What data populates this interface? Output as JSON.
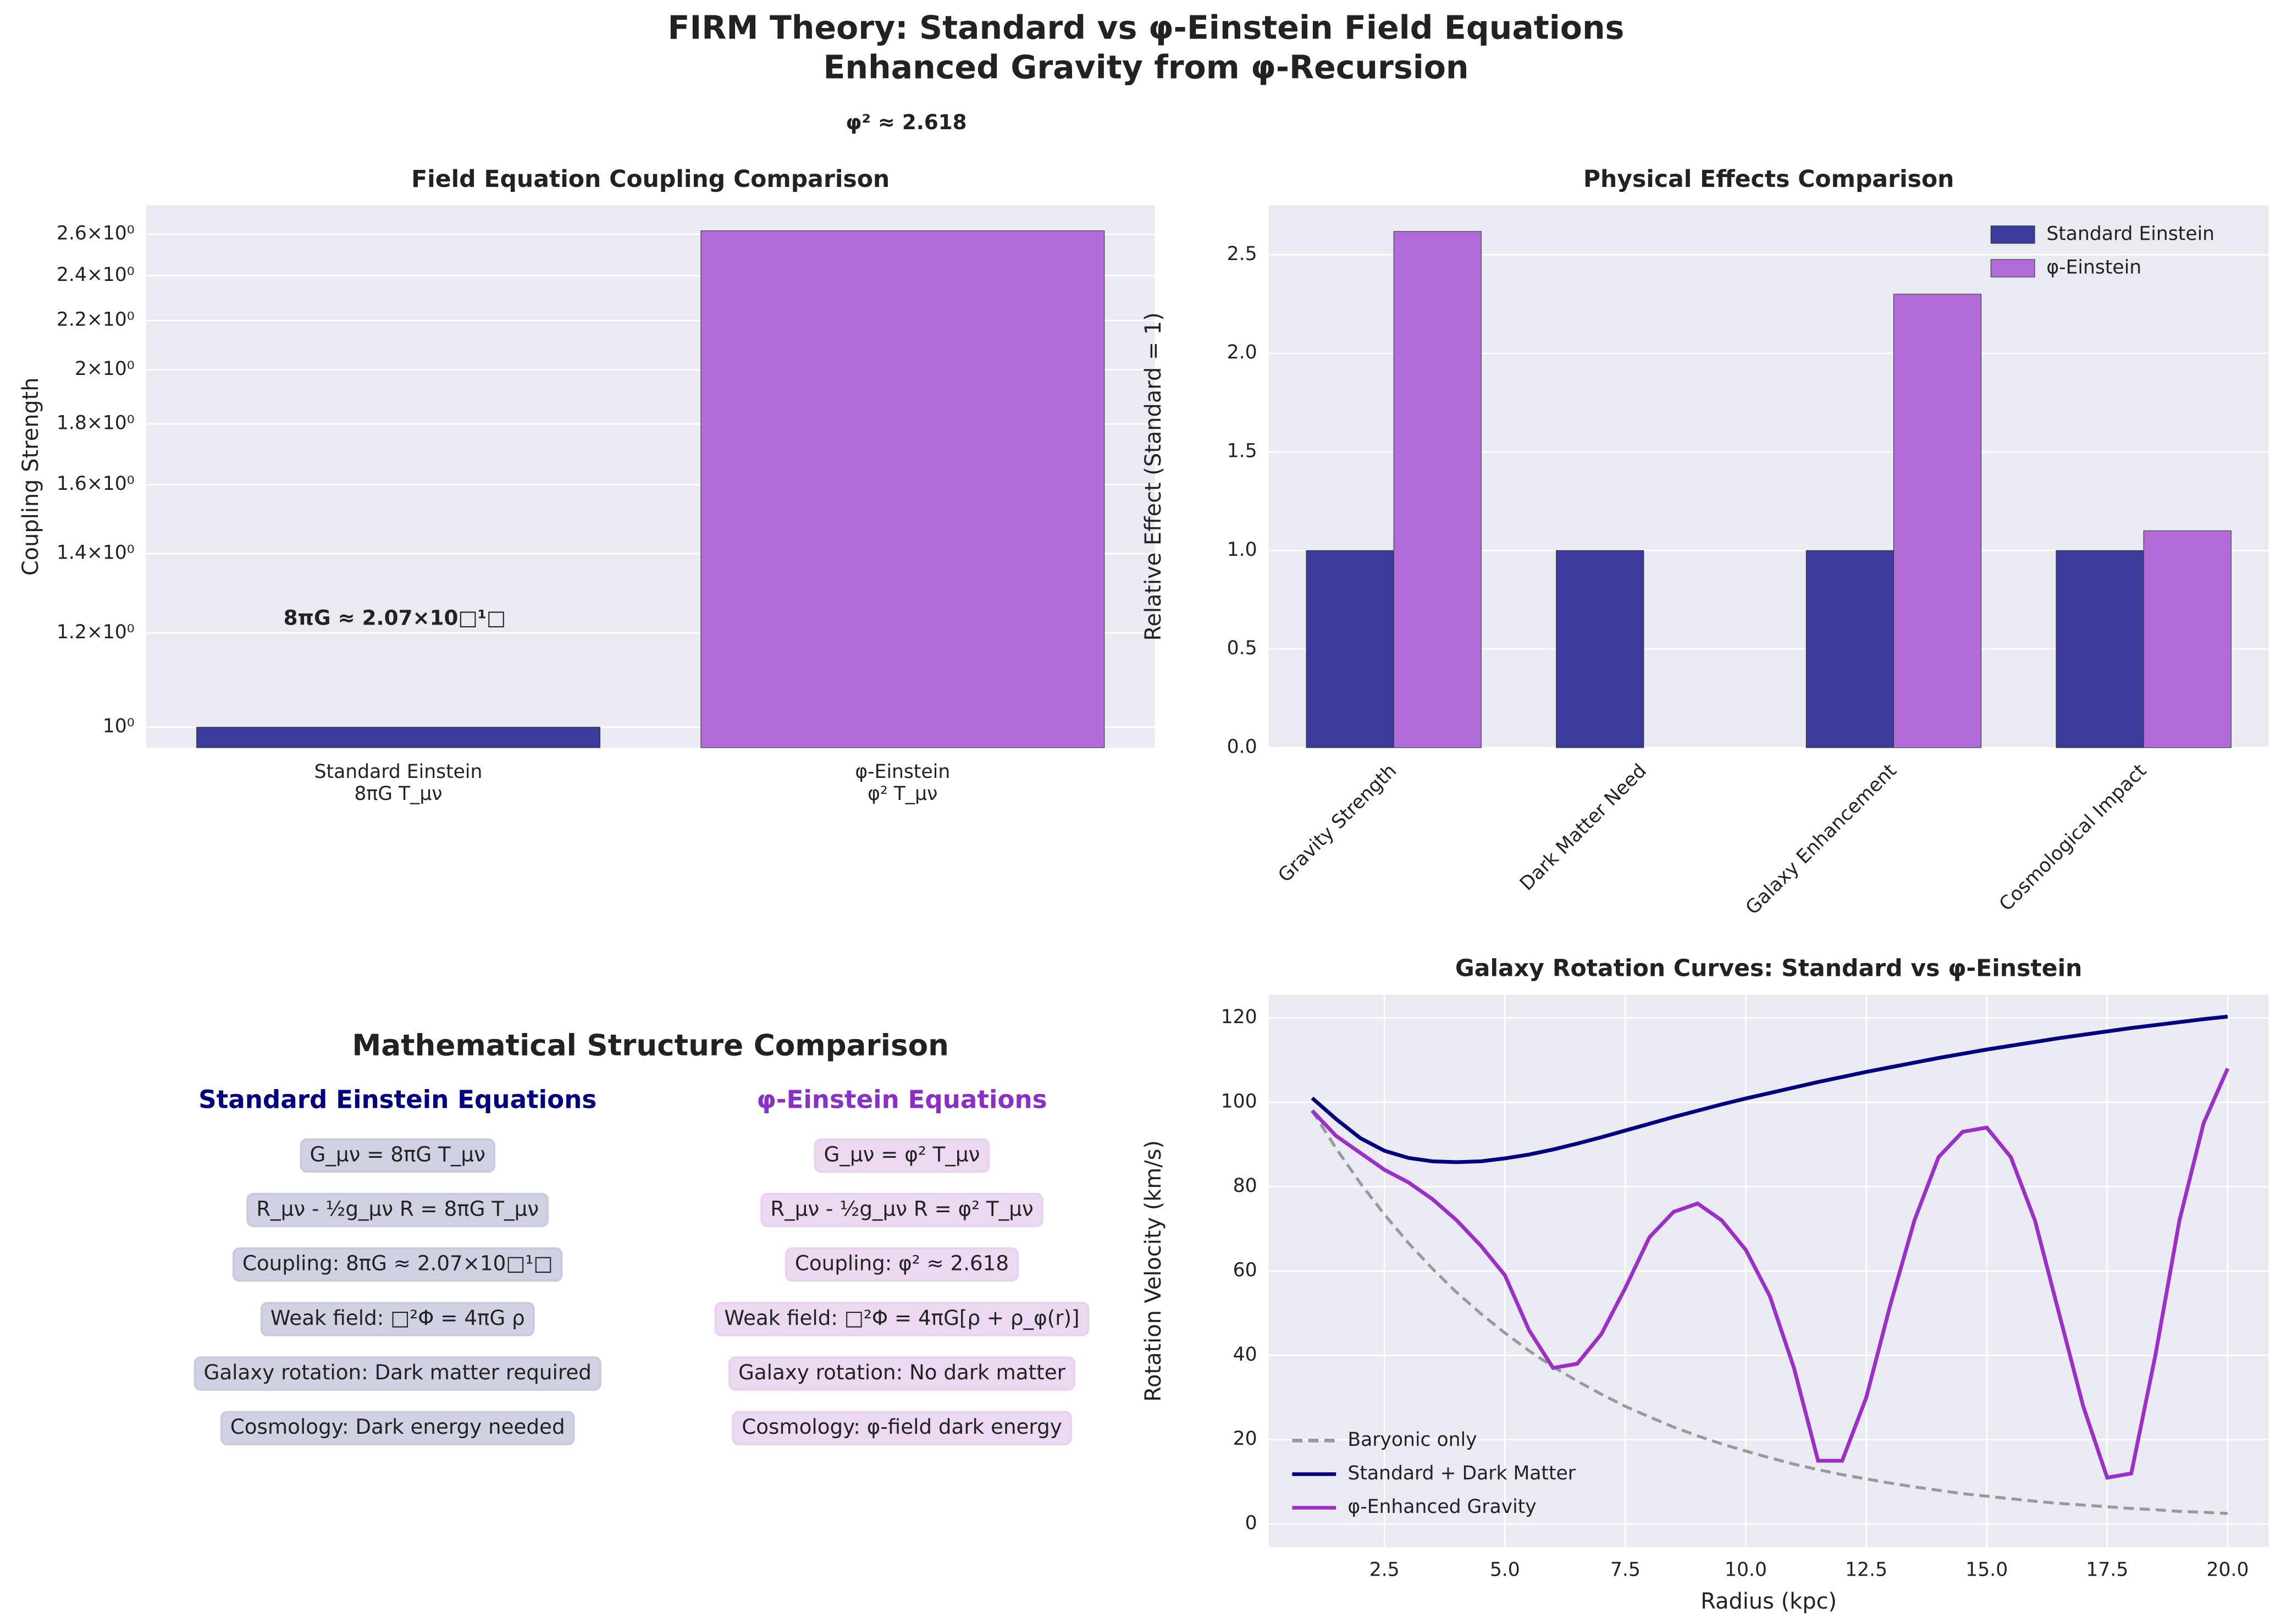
{
  "title": "FIRM Theory: Standard vs φ-Einstein Field Equations",
  "subtitle": "Enhanced Gravity from φ-Recursion",
  "chart_data": [
    {
      "type": "bar",
      "title": "Field Equation Coupling Comparison",
      "y_label": "Coupling Strength",
      "log_scale": true,
      "grid": true,
      "categories": [
        "Standard Einstein\n8πG T_μν",
        "φ-Einstein\nφ² T_μν"
      ],
      "values": [
        1,
        2.618
      ],
      "colors": [
        "#3b3b9b",
        "#b06bd6"
      ],
      "ylim": [
        0.961,
        2.75
      ],
      "yticks": [
        {
          "value": 1,
          "label": "10⁰"
        },
        {
          "value": 1.2,
          "label": "1.2×10⁰"
        },
        {
          "value": 1.4,
          "label": "1.4×10⁰"
        },
        {
          "value": 1.6,
          "label": "1.6×10⁰"
        },
        {
          "value": 1.8,
          "label": "1.8×10⁰"
        },
        {
          "value": 2,
          "label": "2×10⁰"
        },
        {
          "value": 2.2,
          "label": "2.2×10⁰"
        },
        {
          "value": 2.4,
          "label": "2.4×10⁰"
        },
        {
          "value": 2.6,
          "label": "2.6×10⁰"
        }
      ],
      "annotations": [
        "8πG ≈ 2.07×10□¹□",
        "φ² ≈ 2.618"
      ]
    },
    {
      "type": "bar",
      "title": "Physical Effects Comparison",
      "y_label": "Relative Effect (Standard = 1)",
      "grid": true,
      "legend": "upper right",
      "categories": [
        "Gravity Strength",
        "Dark Matter Need",
        "Galaxy Enhancement",
        "Cosmological Impact"
      ],
      "series": [
        {
          "name": "Standard Einstein",
          "color": "#3b3b9b",
          "values": [
            1,
            1,
            1,
            1
          ]
        },
        {
          "name": "φ-Einstein",
          "color": "#b06bd6",
          "values": [
            2.618,
            0,
            2.3,
            1.1
          ]
        }
      ],
      "ylim": [
        0,
        2.75
      ],
      "yticks": [
        {
          "value": 0,
          "label": "0.0"
        },
        0.5,
        {
          "value": 1,
          "label": "1.0"
        },
        1.5,
        {
          "value": 2,
          "label": "2.0"
        },
        2.5
      ]
    },
    {
      "type": "line",
      "title": "Galaxy Rotation Curves: Standard vs φ-Einstein",
      "x_label": "Radius (kpc)",
      "y_label": "Rotation Velocity (km/s)",
      "grid": true,
      "legend": "lower left",
      "x": [
        1,
        1.5,
        2,
        2.5,
        3,
        3.5,
        4,
        4.5,
        5,
        5.5,
        6,
        6.5,
        7,
        7.5,
        8,
        8.5,
        9,
        9.5,
        10,
        10.5,
        11,
        11.5,
        12,
        12.5,
        13,
        13.5,
        14,
        14.5,
        15,
        15.5,
        16,
        16.5,
        17,
        17.5,
        18,
        18.5,
        19,
        19.5,
        20
      ],
      "series": [
        {
          "name": "Baryonic only",
          "color": "#999999",
          "dashed": true,
          "values": [
            98,
            89.0,
            80.8,
            73.4,
            66.6,
            60.5,
            54.9,
            49.9,
            45.3,
            41.1,
            37.3,
            33.9,
            30.8,
            27.9,
            25.4,
            23.0,
            20.9,
            19.0,
            17.3,
            15.7,
            14.2,
            12.9,
            11.7,
            10.7,
            9.7,
            8.8,
            8.0,
            7.2,
            6.6,
            6.0,
            5.4,
            4.9,
            4.5,
            4.1,
            3.7,
            3.4,
            3.0,
            2.8,
            2.5
          ]
        },
        {
          "name": "Standard + Dark Matter",
          "color": "#000080",
          "values": [
            101,
            96,
            91.5,
            88.5,
            86.8,
            86,
            85.8,
            86,
            86.7,
            87.6,
            88.8,
            90.2,
            91.7,
            93.3,
            94.9,
            96.5,
            98,
            99.5,
            100.9,
            102.2,
            103.5,
            104.8,
            106,
            107.2,
            108.3,
            109.4,
            110.5,
            111.5,
            112.5,
            113.4,
            114.3,
            115.2,
            116,
            116.8,
            117.6,
            118.3,
            119,
            119.7,
            120.3
          ]
        },
        {
          "name": "φ-Enhanced Gravity",
          "color": "#9b30c8",
          "values": [
            98,
            92,
            88,
            84,
            81,
            77,
            72,
            66,
            59,
            46,
            37,
            38,
            45,
            56,
            68,
            74,
            76,
            72,
            65,
            54,
            37,
            15,
            15,
            30,
            52,
            72,
            87,
            93,
            94,
            87,
            72,
            50,
            28,
            11,
            12,
            40,
            72,
            95,
            108
          ]
        }
      ],
      "xlim": [
        0.1,
        20.85
      ],
      "ylim": [
        -5.5,
        125.5
      ],
      "xticks": [
        2.5,
        {
          "value": 5,
          "label": "5.0"
        },
        7.5,
        {
          "value": 10,
          "label": "10.0"
        },
        12.5,
        {
          "value": 15,
          "label": "15.0"
        },
        17.5,
        {
          "value": 20,
          "label": "20.0"
        }
      ],
      "yticks": [
        0,
        20,
        40,
        60,
        80,
        100,
        120
      ]
    }
  ],
  "structure_comparison": {
    "title": "Mathematical Structure Comparison",
    "columns": [
      {
        "heading": "Standard Einstein Equations",
        "color": "#000080",
        "box_color": "#c9c9df",
        "items": [
          "G_μν = 8πG T_μν",
          "R_μν - ½g_μν R = 8πG T_μν",
          "Coupling: 8πG ≈ 2.07×10□¹□",
          "Weak field: □²Φ = 4πG ρ",
          "Galaxy rotation: Dark matter required",
          "Cosmology: Dark energy needed"
        ]
      },
      {
        "heading": "φ-Einstein Equations",
        "color": "#8b2fc9",
        "box_color": "#e8d2f0",
        "items": [
          "G_μν = φ² T_μν",
          "R_μν - ½g_μν R = φ² T_μν",
          "Coupling: φ² ≈ 2.618",
          "Weak field: □²Φ = 4πG[ρ + ρ_φ(r)]",
          "Galaxy rotation: No dark matter",
          "Cosmology: φ-field dark energy"
        ]
      }
    ]
  }
}
